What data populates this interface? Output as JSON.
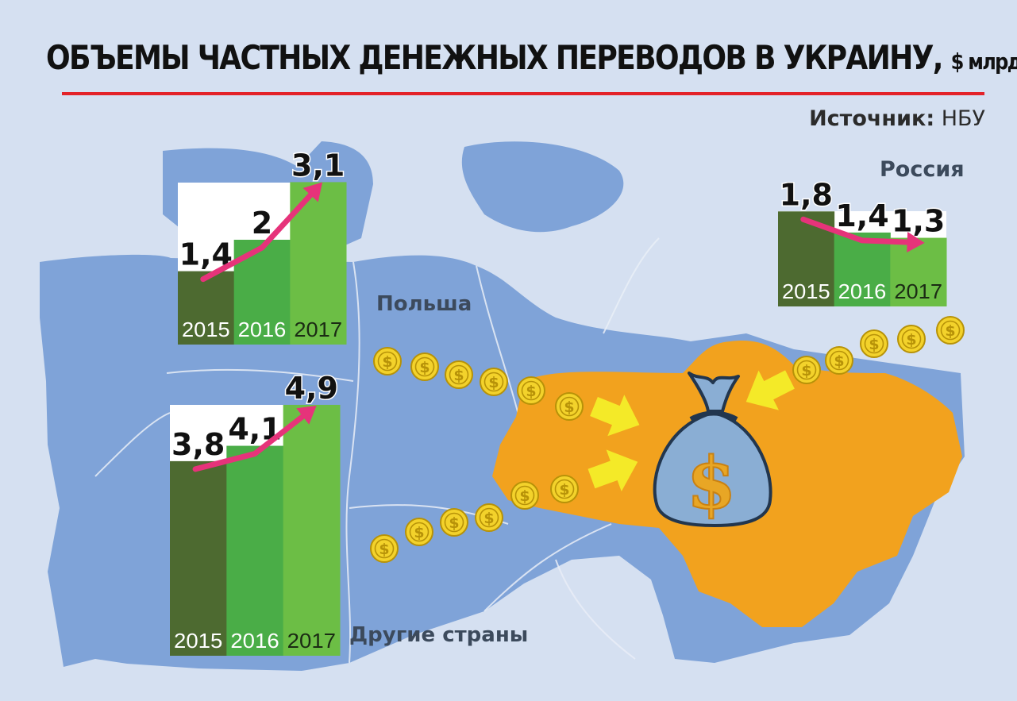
{
  "header": {
    "title": "ОБЪЕМЫ ЧАСТНЫХ ДЕНЕЖНЫХ ПЕРЕВОДОВ В УКРАИНУ,",
    "title_unit": "$ млрд",
    "source_label": "Источник:",
    "source_value": "НБУ"
  },
  "colors": {
    "background": "#d5e0f1",
    "land": "#7fa3d8",
    "ukraine": "#f2a21e",
    "title_rule": "#e32229",
    "bar_2015": "#4d6a30",
    "bar_2016": "#4aad47",
    "bar_2017": "#6cbe45",
    "trend_arrow": "#e6337a",
    "coin": "#f3d22b",
    "inflow_arrow": "#f4ea28",
    "money_bag": "#8aaed4"
  },
  "icons": [
    "coin-icon",
    "money-bag-icon",
    "inflow-arrow-icon"
  ],
  "chart_data": [
    {
      "type": "bar",
      "title": "Польша",
      "categories": [
        "2015",
        "2016",
        "2017"
      ],
      "values": [
        1.4,
        2,
        3.1
      ],
      "value_labels": [
        "1,4",
        "2",
        "3,1"
      ]
    },
    {
      "type": "bar",
      "title": "Другие страны",
      "categories": [
        "2015",
        "2016",
        "2017"
      ],
      "values": [
        3.8,
        4.1,
        4.9
      ],
      "value_labels": [
        "3,8",
        "4,1",
        "4,9"
      ]
    },
    {
      "type": "bar",
      "title": "Россия",
      "categories": [
        "2015",
        "2016",
        "2017"
      ],
      "values": [
        1.8,
        1.4,
        1.3
      ],
      "value_labels": [
        "1,8",
        "1,4",
        "1,3"
      ]
    }
  ]
}
